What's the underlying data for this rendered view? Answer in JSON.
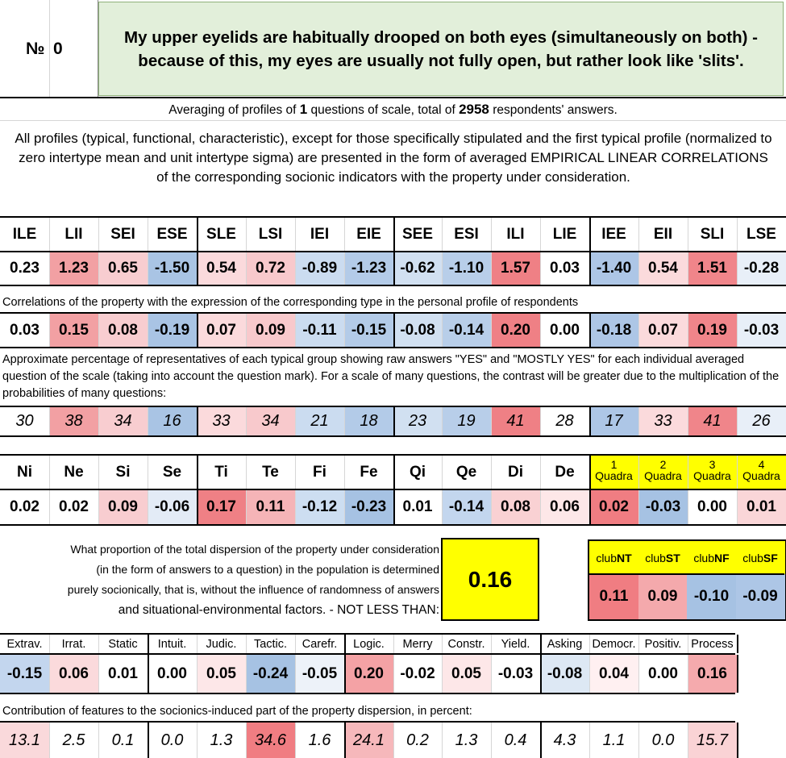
{
  "header": {
    "number_label": "№",
    "number_value": "0",
    "question": "My upper eyelids are habitually drooped on both eyes (simultaneously on both) - because of this, my eyes are usually not fully open, but rather look like 'slits'."
  },
  "averaging": {
    "prefix": "Averaging of profiles of ",
    "questions": "1",
    "middle": " questions of scale, total of ",
    "respondents": "2958",
    "suffix": " respondents' answers."
  },
  "description": "All profiles (typical, functional, characteristic), except for those specifically stipulated and the first typical profile (normalized to zero intertype mean and unit intertype sigma) are presented in the form of averaged EMPIRICAL LINEAR CORRELATIONS of the corresponding socionic indicators with the property under consideration.",
  "types": {
    "headers": [
      "ILE",
      "LII",
      "SEI",
      "ESE",
      "SLE",
      "LSI",
      "IEI",
      "EIE",
      "SEE",
      "ESI",
      "ILI",
      "LIE",
      "IEE",
      "EII",
      "SLI",
      "LSE"
    ],
    "normalized": [
      "0.23",
      "1.23",
      "0.65",
      "-1.50",
      "0.54",
      "0.72",
      "-0.89",
      "-1.23",
      "-0.62",
      "-1.10",
      "1.57",
      "0.03",
      "-1.40",
      "0.54",
      "1.51",
      "-0.28"
    ],
    "normalized_colors": [
      "#ffffff",
      "#f2a0a3",
      "#f8cdd0",
      "#a9c4e4",
      "#fbdadc",
      "#f8c9cc",
      "#cbdcf0",
      "#b3cbe8",
      "#d1e0f1",
      "#b8cee9",
      "#ef8085",
      "#ffffff",
      "#adc6e6",
      "#fbdadc",
      "#f0858a",
      "#e8eff8"
    ],
    "corr_caption": "Correlations of the property with the expression of the corresponding type in the personal profile of respondents",
    "correlations": [
      "0.03",
      "0.15",
      "0.08",
      "-0.19",
      "0.07",
      "0.09",
      "-0.11",
      "-0.15",
      "-0.08",
      "-0.14",
      "0.20",
      "0.00",
      "-0.18",
      "0.07",
      "0.19",
      "-0.03"
    ],
    "corr_colors": [
      "#ffffff",
      "#f2a0a3",
      "#f8cdd0",
      "#a9c4e4",
      "#fbdadc",
      "#f8c9cc",
      "#cbdcf0",
      "#b3cbe8",
      "#d1e0f1",
      "#b8cee9",
      "#ef8085",
      "#ffffff",
      "#adc6e6",
      "#fbdadc",
      "#f0858a",
      "#e8eff8"
    ],
    "pct_caption": "Approximate percentage of representatives of each typical group showing raw answers \"YES\" and \"MOSTLY YES\" for each individual averaged question of the scale (taking into account the question mark). For a scale of many questions, the contrast will be greater due to the multiplication of the probabilities of many questions:",
    "percentages": [
      "30",
      "38",
      "34",
      "16",
      "33",
      "34",
      "21",
      "18",
      "23",
      "19",
      "41",
      "28",
      "17",
      "33",
      "41",
      "26"
    ],
    "pct_colors": [
      "#ffffff",
      "#f2a0a3",
      "#f8cdd0",
      "#a9c4e4",
      "#fbdadc",
      "#f8c9cc",
      "#cbdcf0",
      "#b3cbe8",
      "#d1e0f1",
      "#b8cee9",
      "#ef8085",
      "#ffffff",
      "#adc6e6",
      "#fbdadc",
      "#f0858a",
      "#e8eff8"
    ]
  },
  "functions": {
    "headers": [
      "Ni",
      "Ne",
      "Si",
      "Se",
      "Ti",
      "Te",
      "Fi",
      "Fe",
      "Qi",
      "Qe",
      "Di",
      "De"
    ],
    "values": [
      "0.02",
      "0.02",
      "0.09",
      "-0.06",
      "0.17",
      "0.11",
      "-0.12",
      "-0.23",
      "0.01",
      "-0.14",
      "0.08",
      "0.06"
    ],
    "colors": [
      "#ffffff",
      "#ffffff",
      "#f8cdd0",
      "#e3ebf6",
      "#ef8085",
      "#f5b4b7",
      "#cddef1",
      "#a6c2e3",
      "#ffffff",
      "#c3d6ee",
      "#f9d1d3",
      "#fde7e8"
    ],
    "quadra_headers": [
      [
        "1",
        "Quadra"
      ],
      [
        "2",
        "Quadra"
      ],
      [
        "3",
        "Quadra"
      ],
      [
        "4",
        "Quadra"
      ]
    ],
    "quadra_values": [
      "0.02",
      "-0.03",
      "0.00",
      "0.01"
    ],
    "quadra_colors": [
      "#f07d82",
      "#a6c2e3",
      "#ffffff",
      "#fad6d8"
    ],
    "quadra_header_color": "#ffff00"
  },
  "dispersion": {
    "text_lines": [
      "What proportion of the total dispersion of the property under consideration",
      "(in the form of answers to a question) in the population is determined",
      "purely socionically, that is, without the influence of randomness of answers",
      "and situational-environmental factors. - NOT LESS THAN:"
    ],
    "value": "0.16",
    "value_bg": "#ffff00"
  },
  "clubs": {
    "headers": [
      [
        "club",
        "NT"
      ],
      [
        "club",
        "ST"
      ],
      [
        "club",
        "NF"
      ],
      [
        "club",
        "SF"
      ]
    ],
    "values": [
      "0.11",
      "0.09",
      "-0.10",
      "-0.09"
    ],
    "colors": [
      "#f07d82",
      "#f4a9ac",
      "#a6c2e3",
      "#adc6e6"
    ],
    "header_color": "#ffff00"
  },
  "traits": {
    "headers": [
      "Extrav.",
      "Irrat.",
      "Static",
      "Intuit.",
      "Judic.",
      "Tactic.",
      "Carefr.",
      "Logic.",
      "Merry",
      "Constr.",
      "Yield.",
      "Asking",
      "Democr.",
      "Positiv.",
      "Process"
    ],
    "values": [
      "-0.15",
      "0.06",
      "0.01",
      "0.00",
      "0.05",
      "-0.24",
      "-0.05",
      "0.20",
      "-0.02",
      "0.05",
      "-0.03",
      "-0.08",
      "0.04",
      "0.00",
      "0.16"
    ],
    "colors": [
      "#c3d6ee",
      "#fbdadc",
      "#ffffff",
      "#ffffff",
      "#fde7e8",
      "#a6c2e3",
      "#edf2f9",
      "#f4a2a5",
      "#ffffff",
      "#fde7e8",
      "#ffffff",
      "#dde8f4",
      "#fff0f1",
      "#ffffff",
      "#f5aaad"
    ],
    "contrib_caption": "Contribution of features to the socionics-induced part of the property dispersion, in percent:",
    "contributions": [
      "13.1",
      "2.5",
      "0.1",
      "0.0",
      "1.3",
      "34.6",
      "1.6",
      "24.1",
      "0.2",
      "1.3",
      "0.4",
      "4.3",
      "1.1",
      "0.0",
      "15.7"
    ],
    "contrib_colors": [
      "#fad9db",
      "#ffffff",
      "#ffffff",
      "#ffffff",
      "#ffffff",
      "#f07d82",
      "#ffffff",
      "#f6b8bb",
      "#ffffff",
      "#ffffff",
      "#ffffff",
      "#ffffff",
      "#ffffff",
      "#ffffff",
      "#fad3d5"
    ]
  }
}
